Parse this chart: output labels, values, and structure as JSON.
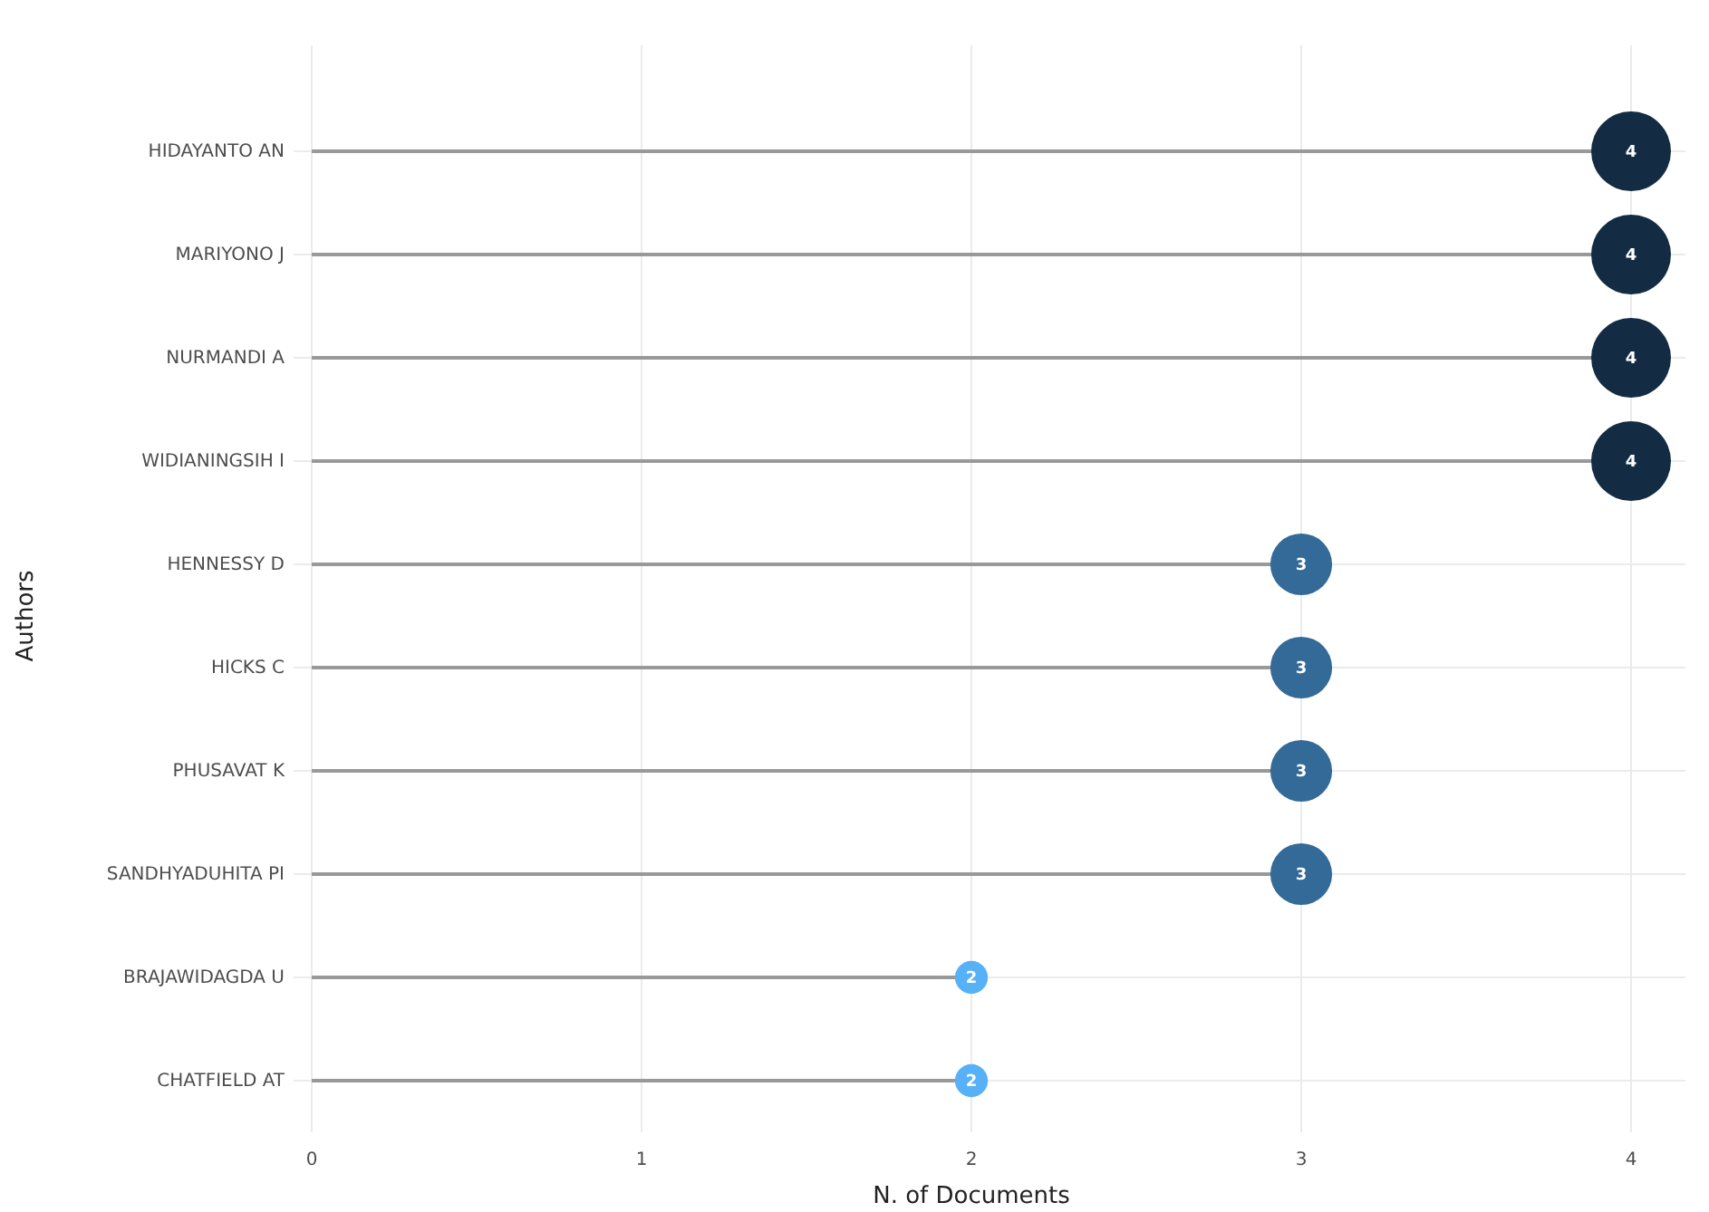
{
  "chart_data": {
    "type": "lollipop",
    "orientation": "horizontal",
    "xlabel": "N. of Documents",
    "ylabel": "Authors",
    "categories": [
      "HIDAYANTO AN",
      "MARIYONO J",
      "NURMANDI A",
      "WIDIANINGSIH I",
      "HENNESSY D",
      "HICKS C",
      "PHUSAVAT K",
      "SANDHYADUHITA PI",
      "BRAJAWIDAGDA U",
      "CHATFIELD AT"
    ],
    "values": [
      4,
      4,
      4,
      4,
      3,
      3,
      3,
      3,
      2,
      2
    ],
    "sizes": [
      1,
      1,
      1,
      1,
      0.6,
      0.6,
      0.6,
      0.6,
      0.17,
      0.17
    ],
    "colors": [
      "#132b43",
      "#132b43",
      "#132b43",
      "#132b43",
      "#336a98",
      "#336a98",
      "#336a98",
      "#336a98",
      "#56b1f7",
      "#56b1f7"
    ],
    "xlim": [
      0,
      4
    ],
    "xticks": [
      0,
      1,
      2,
      3,
      4
    ],
    "grid": true,
    "data_labels": true,
    "marker": "circle"
  }
}
